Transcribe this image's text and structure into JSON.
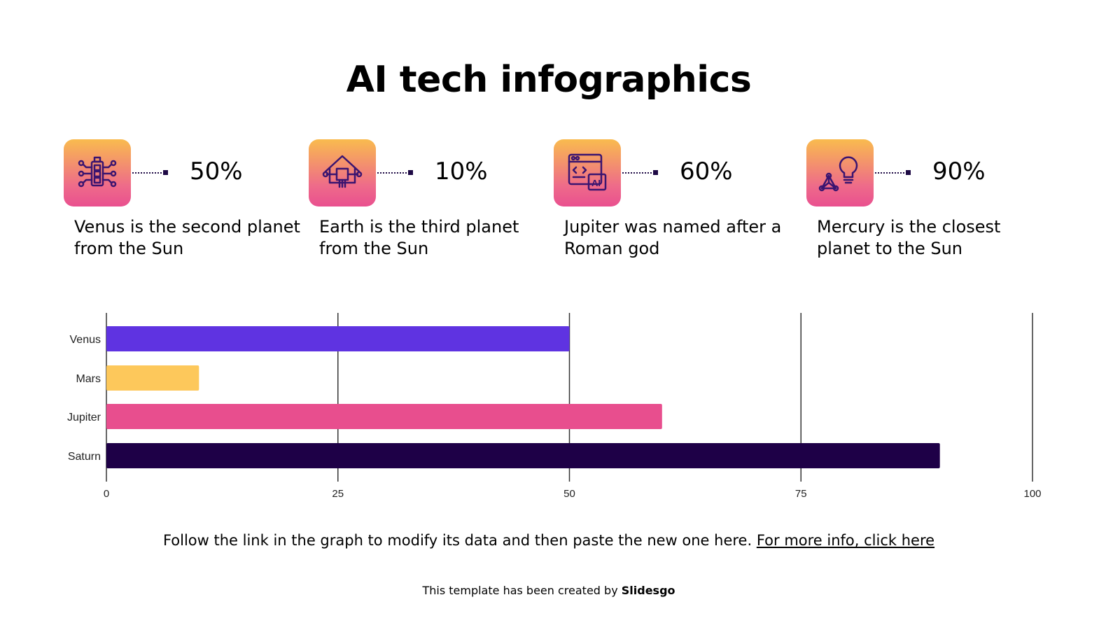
{
  "title": "AI tech infographics",
  "cards": [
    {
      "icon": "circuit-battery-icon",
      "percent": "50%",
      "text": "Venus is the second planet from the Sun"
    },
    {
      "icon": "smart-home-chip-icon",
      "percent": "10%",
      "text": "Earth is the third planet from the Sun"
    },
    {
      "icon": "ai-code-window-icon",
      "percent": "60%",
      "text": "Jupiter was named after a Roman god"
    },
    {
      "icon": "lightbulb-network-icon",
      "percent": "90%",
      "text": "Mercury is the closest planet to the Sun"
    }
  ],
  "chart_data": {
    "type": "bar",
    "orientation": "horizontal",
    "categories": [
      "Venus",
      "Mars",
      "Jupiter",
      "Saturn"
    ],
    "values": [
      50,
      10,
      60,
      90
    ],
    "colors": [
      "#5f33e1",
      "#fdc85b",
      "#e84e8e",
      "#1e0047"
    ],
    "xlim": [
      0,
      100
    ],
    "xticks": [
      "0",
      "25",
      "50",
      "75",
      "100"
    ],
    "grid": true,
    "title": "",
    "xlabel": "",
    "ylabel": ""
  },
  "note": {
    "text": "Follow the link in the graph to modify its data and then paste the new one here. ",
    "link": "For more info, click here"
  },
  "credit": {
    "prefix": "This template has been created by ",
    "brand": "Slidesgo"
  }
}
